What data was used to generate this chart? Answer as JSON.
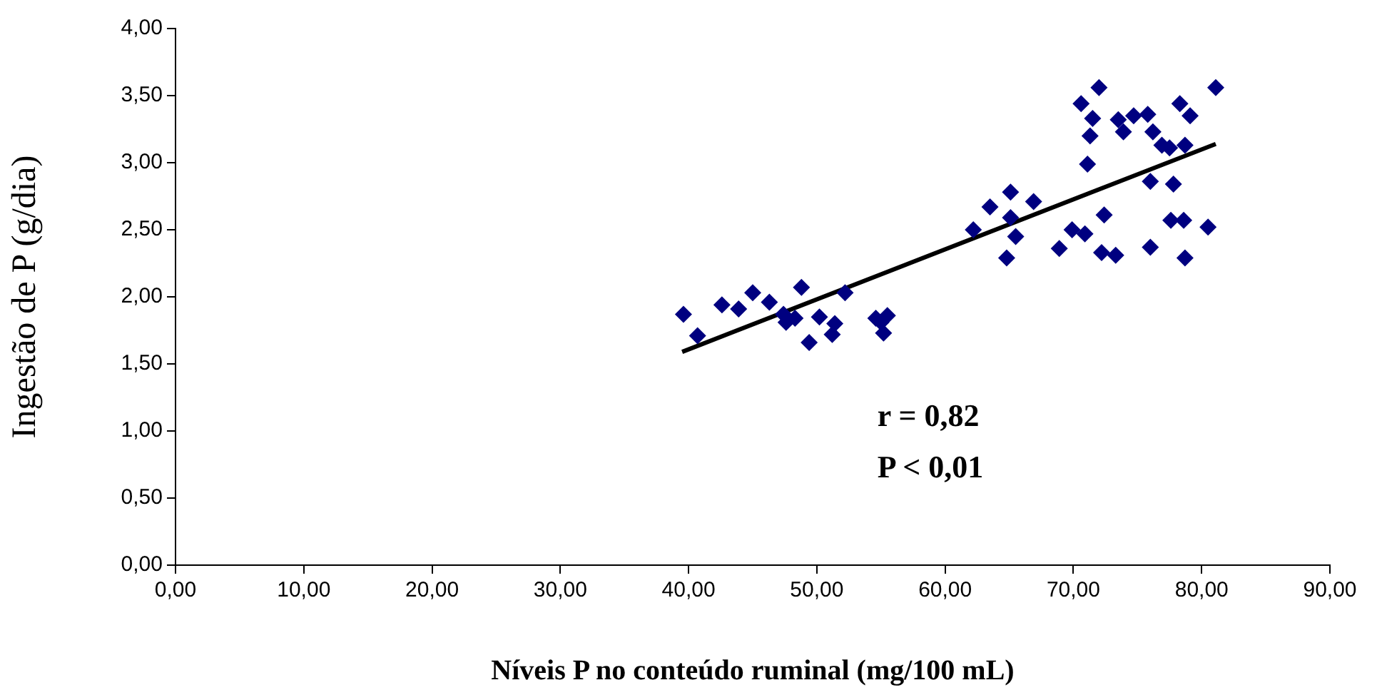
{
  "chart_data": {
    "type": "scatter",
    "xlabel": "Níveis P no conteúdo ruminal (mg/100 mL)",
    "ylabel": "Ingestão de P (g/dia)",
    "xlim": [
      0,
      90
    ],
    "ylim": [
      0,
      4
    ],
    "xticks": [
      {
        "value": 0,
        "label": "0,00"
      },
      {
        "value": 10,
        "label": "10,00"
      },
      {
        "value": 20,
        "label": "20,00"
      },
      {
        "value": 30,
        "label": "30,00"
      },
      {
        "value": 40,
        "label": "40,00"
      },
      {
        "value": 50,
        "label": "50,00"
      },
      {
        "value": 60,
        "label": "60,00"
      },
      {
        "value": 70,
        "label": "70,00"
      },
      {
        "value": 80,
        "label": "80,00"
      },
      {
        "value": 90,
        "label": "90,00"
      }
    ],
    "yticks": [
      {
        "value": 0,
        "label": "0,00"
      },
      {
        "value": 0.5,
        "label": "0,50"
      },
      {
        "value": 1,
        "label": "1,00"
      },
      {
        "value": 1.5,
        "label": "1,50"
      },
      {
        "value": 2,
        "label": "2,00"
      },
      {
        "value": 2.5,
        "label": "2,50"
      },
      {
        "value": 3,
        "label": "3,00"
      },
      {
        "value": 3.5,
        "label": "3,50"
      },
      {
        "value": 4,
        "label": "4,00"
      }
    ],
    "grid": false,
    "legend": false,
    "marker": "diamond",
    "annotations": [
      "r = 0,82",
      "P < 0,01"
    ],
    "series": [
      {
        "type": "scatter",
        "color": "#000080",
        "x": [
          39.6,
          40.7,
          42.6,
          43.9,
          45.0,
          46.3,
          47.4,
          47.6,
          48.3,
          48.8,
          49.4,
          50.2,
          51.2,
          51.4,
          52.2,
          54.6,
          55.0,
          55.5,
          55.2,
          62.2,
          63.5,
          65.1,
          66.9,
          65.1,
          65.5,
          64.8,
          68.9,
          69.9,
          70.9,
          72.4,
          72.2,
          73.3,
          76.0,
          77.6,
          78.6,
          80.5,
          78.7,
          72.0,
          70.6,
          71.5,
          71.3,
          71.1,
          73.5,
          73.9,
          74.7,
          75.8,
          76.2,
          76.9,
          77.5,
          78.7,
          78.3,
          79.1,
          81.1,
          76.0,
          77.8
        ],
        "values": [
          1.87,
          1.71,
          1.94,
          1.91,
          2.03,
          1.96,
          1.87,
          1.81,
          1.84,
          2.07,
          1.66,
          1.85,
          1.72,
          1.8,
          2.03,
          1.84,
          1.81,
          1.86,
          1.73,
          2.5,
          2.67,
          2.78,
          2.71,
          2.59,
          2.45,
          2.29,
          2.36,
          2.5,
          2.47,
          2.61,
          2.33,
          2.31,
          2.37,
          2.57,
          2.57,
          2.52,
          2.29,
          3.56,
          3.44,
          3.33,
          3.2,
          2.99,
          3.32,
          3.23,
          3.35,
          3.36,
          3.23,
          3.13,
          3.11,
          3.13,
          3.44,
          3.35,
          3.56,
          2.86,
          2.84
        ]
      },
      {
        "type": "line",
        "color": "#000000",
        "marker": "none",
        "line_style": "solid",
        "x": [
          39.5,
          81.1
        ],
        "values": [
          1.59,
          3.14
        ]
      }
    ]
  }
}
